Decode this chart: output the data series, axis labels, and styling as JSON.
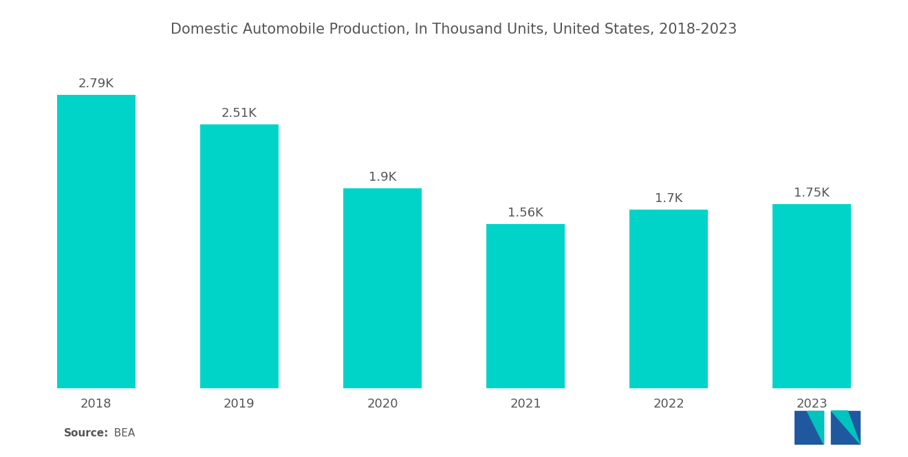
{
  "title": "Domestic Automobile Production, In Thousand Units, United States, 2018-2023",
  "categories": [
    "2018",
    "2019",
    "2020",
    "2021",
    "2022",
    "2023"
  ],
  "values": [
    2790,
    2510,
    1900,
    1560,
    1700,
    1750
  ],
  "labels": [
    "2.79K",
    "2.51K",
    "1.9K",
    "1.56K",
    "1.7K",
    "1.75K"
  ],
  "bar_color": "#00D4C8",
  "background_color": "#FFFFFF",
  "title_fontsize": 15,
  "label_fontsize": 13,
  "tick_fontsize": 13,
  "source_label": "Source:",
  "source_value": "  BEA",
  "ylim": [
    0,
    3200
  ]
}
